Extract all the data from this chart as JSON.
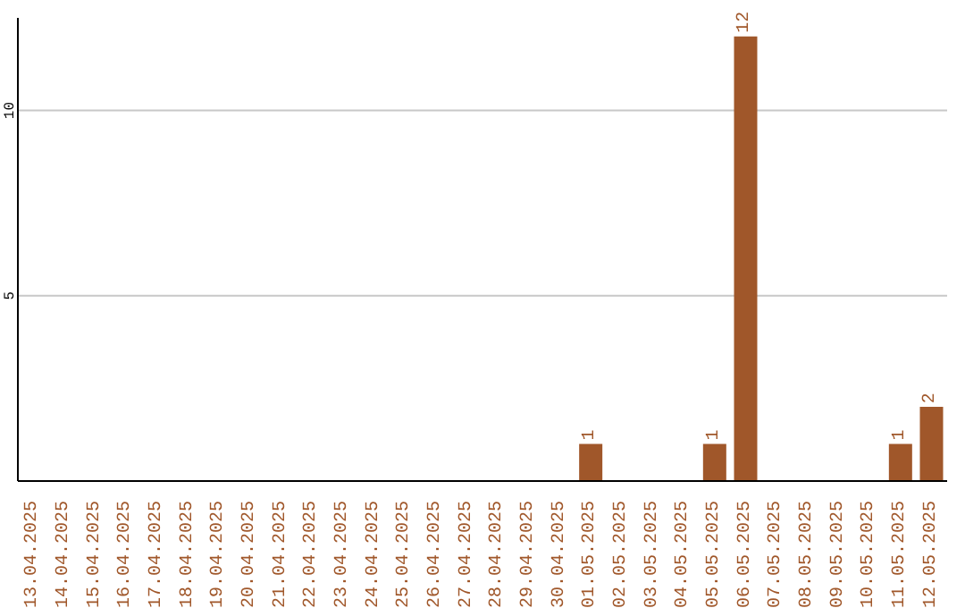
{
  "chart_data": {
    "type": "bar",
    "categories": [
      "13.04.2025",
      "14.04.2025",
      "15.04.2025",
      "16.04.2025",
      "17.04.2025",
      "18.04.2025",
      "19.04.2025",
      "20.04.2025",
      "21.04.2025",
      "22.04.2025",
      "23.04.2025",
      "24.04.2025",
      "25.04.2025",
      "26.04.2025",
      "27.04.2025",
      "28.04.2025",
      "29.04.2025",
      "30.04.2025",
      "01.05.2025",
      "02.05.2025",
      "03.05.2025",
      "04.05.2025",
      "05.05.2025",
      "06.05.2025",
      "07.05.2025",
      "08.05.2025",
      "09.05.2025",
      "10.05.2025",
      "11.05.2025",
      "12.05.2025"
    ],
    "values": [
      0,
      0,
      0,
      0,
      0,
      0,
      0,
      0,
      0,
      0,
      0,
      0,
      0,
      0,
      0,
      0,
      0,
      0,
      1,
      0,
      0,
      0,
      1,
      12,
      0,
      0,
      0,
      0,
      1,
      2
    ],
    "value_labels": [
      null,
      null,
      null,
      null,
      null,
      null,
      null,
      null,
      null,
      null,
      null,
      null,
      null,
      null,
      null,
      null,
      null,
      null,
      "1",
      null,
      null,
      null,
      "1",
      "12",
      null,
      null,
      null,
      null,
      "1",
      "2"
    ],
    "color": "#a0572a",
    "ylim": [
      0,
      12.5
    ],
    "yticks": [
      5,
      10
    ],
    "grid": "y",
    "legend": false
  }
}
